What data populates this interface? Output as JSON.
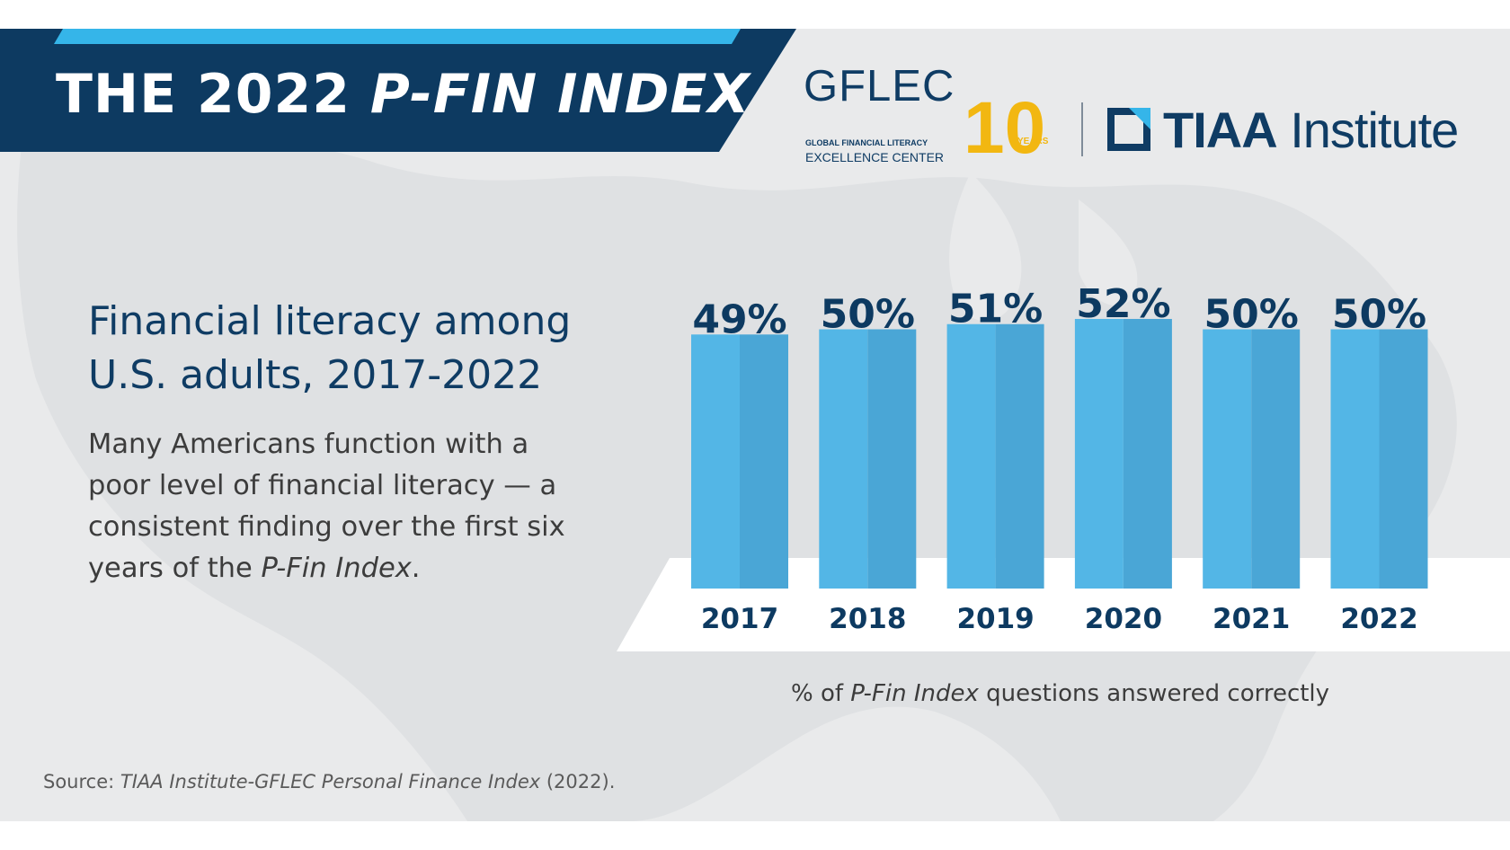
{
  "header": {
    "title_prefix": "THE 2022 ",
    "title_emphasis": "P-FIN INDEX"
  },
  "logos": {
    "gflec": {
      "wordmark": "GFLEC",
      "line1": "GLOBAL FINANCIAL LITERACY",
      "line2": "EXCELLENCE CENTER",
      "anniversary": "10",
      "anniversary_label": "YEARS"
    },
    "tiaa": {
      "name_bold": "TIAA",
      "name_regular": " Institute"
    }
  },
  "intro": {
    "subtitle_line1": "Financial literacy among",
    "subtitle_line2": "U.S. adults, 2017-2022",
    "description_main": "Many Americans function with a poor level of financial literacy — a consistent finding over the first six years of the ",
    "description_emphasis": "P-Fin Index",
    "description_end": "."
  },
  "chart_data": {
    "type": "bar",
    "categories": [
      "2017",
      "2018",
      "2019",
      "2020",
      "2021",
      "2022"
    ],
    "values": [
      49,
      50,
      51,
      52,
      50,
      50
    ],
    "value_labels": [
      "49%",
      "50%",
      "51%",
      "52%",
      "50%",
      "50%"
    ],
    "unit": "%",
    "title": "Financial literacy among U.S. adults, 2017-2022",
    "xlabel": "",
    "ylabel": "% of P-Fin Index questions answered correctly",
    "ylim": [
      0,
      52
    ],
    "grid": false,
    "legend": "none"
  },
  "caption": {
    "prefix": "% of ",
    "emphasis": "P-Fin Index",
    "suffix": " questions answered correctly"
  },
  "source": {
    "prefix": "Source: ",
    "emphasis": "TIAA Institute-GFLEC Personal Finance Index",
    "suffix": " (2022)."
  },
  "colors": {
    "navy": "#0d3a61",
    "accent_blue": "#35b5e9",
    "bar_light": "#53b6e6",
    "bar_dark": "#4aa6d6",
    "gold": "#f2b711",
    "background": "#e9eaeb"
  }
}
